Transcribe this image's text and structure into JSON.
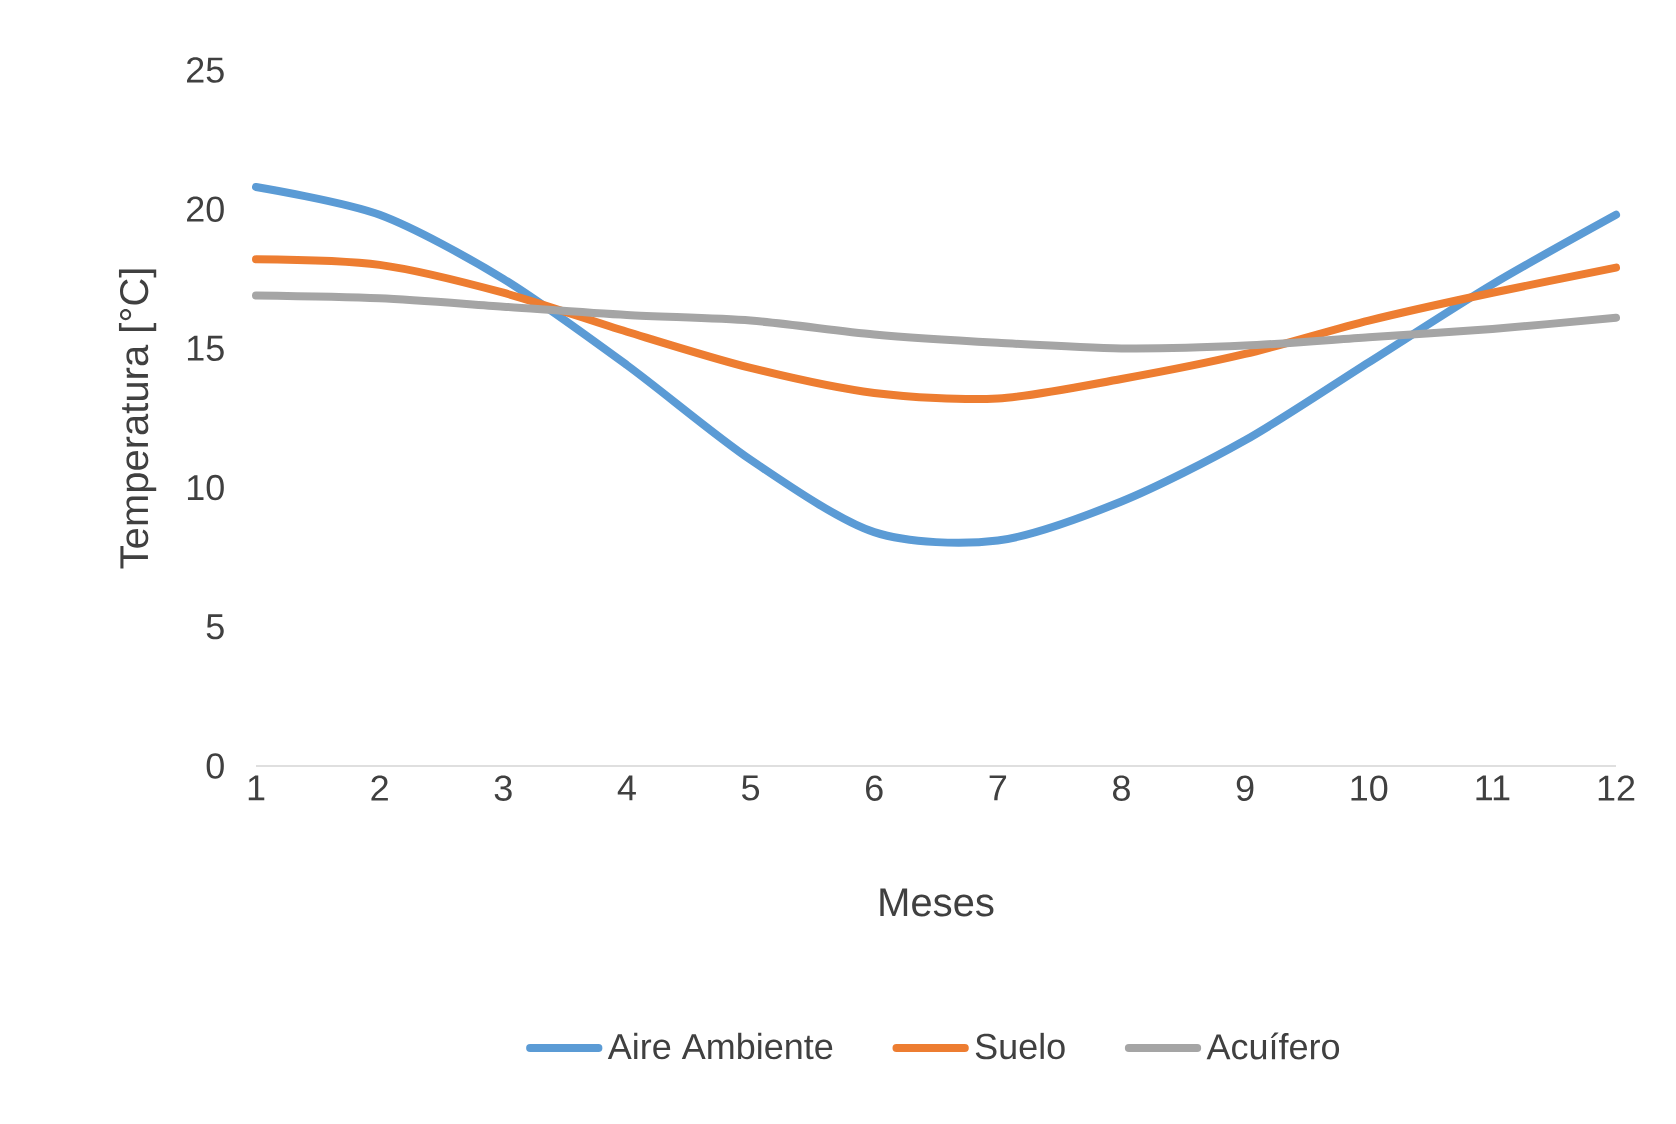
{
  "chart_data": {
    "type": "line",
    "xlabel": "Meses",
    "ylabel": "Temperatura [°C]",
    "x": [
      1,
      2,
      3,
      4,
      5,
      6,
      7,
      8,
      9,
      10,
      11,
      12
    ],
    "series": [
      {
        "name": "Aire Ambiente",
        "color": "#5b9bd5",
        "values": [
          20.8,
          19.8,
          17.5,
          14.4,
          11.0,
          8.4,
          8.1,
          9.5,
          11.7,
          14.5,
          17.3,
          19.8
        ]
      },
      {
        "name": "Suelo",
        "color": "#ed7d31",
        "values": [
          18.2,
          18.0,
          17.0,
          15.6,
          14.3,
          13.4,
          13.2,
          13.9,
          14.8,
          16.0,
          17.0,
          17.9
        ]
      },
      {
        "name": "Acuífero",
        "color": "#a5a5a5",
        "values": [
          16.9,
          16.8,
          16.5,
          16.2,
          16.0,
          15.5,
          15.2,
          15.0,
          15.1,
          15.4,
          15.7,
          16.1
        ]
      }
    ],
    "xlim": [
      1,
      12
    ],
    "ylim": [
      0,
      25
    ],
    "xticks": [
      1,
      2,
      3,
      4,
      5,
      6,
      7,
      8,
      9,
      10,
      11,
      12
    ],
    "yticks": [
      0,
      5,
      10,
      15,
      20,
      25
    ],
    "legend": "bottom",
    "marker": "none",
    "line_style": "solid"
  }
}
